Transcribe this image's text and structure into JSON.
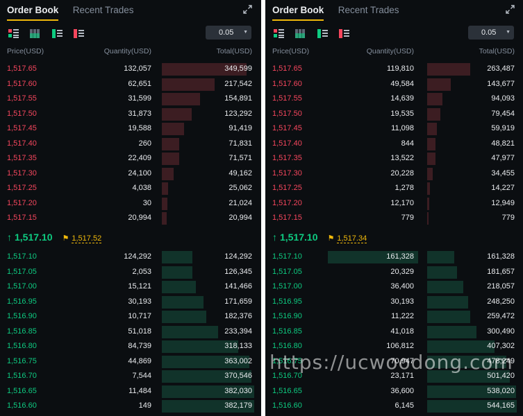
{
  "tabs": [
    "Order Book",
    "Recent Trades"
  ],
  "tick_value": "0.05",
  "headers": {
    "price": "Price(USD)",
    "quantity": "Quantity(USD)",
    "total": "Total(USD)"
  },
  "colors": {
    "ask": "#f6465d",
    "bid": "#0ecb81",
    "accent": "#f0b90b"
  },
  "icons": [
    "view-both-icon",
    "view-bids-icon",
    "view-asks-icon",
    "view-compact-icon",
    "expand-icon",
    "flag-icon",
    "arrow-up-icon"
  ],
  "panels": [
    {
      "last_price": "1,517.10",
      "mark_price": "1,517.52",
      "max_total": 382179,
      "asks": [
        {
          "price": "1,517.65",
          "qty": "132,057",
          "total": "349,599",
          "fill": 0.92
        },
        {
          "price": "1,517.60",
          "qty": "62,651",
          "total": "217,542",
          "fill": 0.57
        },
        {
          "price": "1,517.55",
          "qty": "31,599",
          "total": "154,891",
          "fill": 0.41
        },
        {
          "price": "1,517.50",
          "qty": "31,873",
          "total": "123,292",
          "fill": 0.32
        },
        {
          "price": "1,517.45",
          "qty": "19,588",
          "total": "91,419",
          "fill": 0.24
        },
        {
          "price": "1,517.40",
          "qty": "260",
          "total": "71,831",
          "fill": 0.19
        },
        {
          "price": "1,517.35",
          "qty": "22,409",
          "total": "71,571",
          "fill": 0.19
        },
        {
          "price": "1,517.30",
          "qty": "24,100",
          "total": "49,162",
          "fill": 0.13
        },
        {
          "price": "1,517.25",
          "qty": "4,038",
          "total": "25,062",
          "fill": 0.07
        },
        {
          "price": "1,517.20",
          "qty": "30",
          "total": "21,024",
          "fill": 0.06
        },
        {
          "price": "1,517.15",
          "qty": "20,994",
          "total": "20,994",
          "fill": 0.05
        }
      ],
      "bids": [
        {
          "price": "1,517.10",
          "qty": "124,292",
          "total": "124,292",
          "fill": 0.33
        },
        {
          "price": "1,517.05",
          "qty": "2,053",
          "total": "126,345",
          "fill": 0.33
        },
        {
          "price": "1,517.00",
          "qty": "15,121",
          "total": "141,466",
          "fill": 0.37
        },
        {
          "price": "1,516.95",
          "qty": "30,193",
          "total": "171,659",
          "fill": 0.45
        },
        {
          "price": "1,516.90",
          "qty": "10,717",
          "total": "182,376",
          "fill": 0.48
        },
        {
          "price": "1,516.85",
          "qty": "51,018",
          "total": "233,394",
          "fill": 0.61
        },
        {
          "price": "1,516.80",
          "qty": "84,739",
          "total": "318,133",
          "fill": 0.83
        },
        {
          "price": "1,516.75",
          "qty": "44,869",
          "total": "363,002",
          "fill": 0.95
        },
        {
          "price": "1,516.70",
          "qty": "7,544",
          "total": "370,546",
          "fill": 0.97
        },
        {
          "price": "1,516.65",
          "qty": "11,484",
          "total": "382,030",
          "fill": 1.0
        },
        {
          "price": "1,516.60",
          "qty": "149",
          "total": "382,179",
          "fill": 1.0
        }
      ]
    },
    {
      "last_price": "1,517.10",
      "mark_price": "1,517.34",
      "max_total": 544165,
      "asks": [
        {
          "price": "1,517.65",
          "qty": "119,810",
          "total": "263,487",
          "fill": 0.48
        },
        {
          "price": "1,517.60",
          "qty": "49,584",
          "total": "143,677",
          "fill": 0.26
        },
        {
          "price": "1,517.55",
          "qty": "14,639",
          "total": "94,093",
          "fill": 0.17
        },
        {
          "price": "1,517.50",
          "qty": "19,535",
          "total": "79,454",
          "fill": 0.15
        },
        {
          "price": "1,517.45",
          "qty": "11,098",
          "total": "59,919",
          "fill": 0.11
        },
        {
          "price": "1,517.40",
          "qty": "844",
          "total": "48,821",
          "fill": 0.09
        },
        {
          "price": "1,517.35",
          "qty": "13,522",
          "total": "47,977",
          "fill": 0.09
        },
        {
          "price": "1,517.30",
          "qty": "20,228",
          "total": "34,455",
          "fill": 0.06
        },
        {
          "price": "1,517.25",
          "qty": "1,278",
          "total": "14,227",
          "fill": 0.03
        },
        {
          "price": "1,517.20",
          "qty": "12,170",
          "total": "12,949",
          "fill": 0.02
        },
        {
          "price": "1,517.15",
          "qty": "779",
          "total": "779",
          "fill": 0.0
        }
      ],
      "bids": [
        {
          "price": "1,517.10",
          "qty": "161,328",
          "total": "161,328",
          "fill": 0.3,
          "qty_fill": 1.0
        },
        {
          "price": "1,517.05",
          "qty": "20,329",
          "total": "181,657",
          "fill": 0.33
        },
        {
          "price": "1,517.00",
          "qty": "36,400",
          "total": "218,057",
          "fill": 0.4
        },
        {
          "price": "1,516.95",
          "qty": "30,193",
          "total": "248,250",
          "fill": 0.46
        },
        {
          "price": "1,516.90",
          "qty": "11,222",
          "total": "259,472",
          "fill": 0.48
        },
        {
          "price": "1,516.85",
          "qty": "41,018",
          "total": "300,490",
          "fill": 0.55
        },
        {
          "price": "1,516.80",
          "qty": "106,812",
          "total": "407,302",
          "fill": 0.75
        },
        {
          "price": "1,516.75",
          "qty": "70,947",
          "total": "478,249",
          "fill": 0.88
        },
        {
          "price": "1,516.70",
          "qty": "23,171",
          "total": "501,420",
          "fill": 0.92
        },
        {
          "price": "1,516.65",
          "qty": "36,600",
          "total": "538,020",
          "fill": 0.99
        },
        {
          "price": "1,516.60",
          "qty": "6,145",
          "total": "544,165",
          "fill": 1.0
        }
      ]
    }
  ],
  "watermark": "https://ucwoodong.com"
}
